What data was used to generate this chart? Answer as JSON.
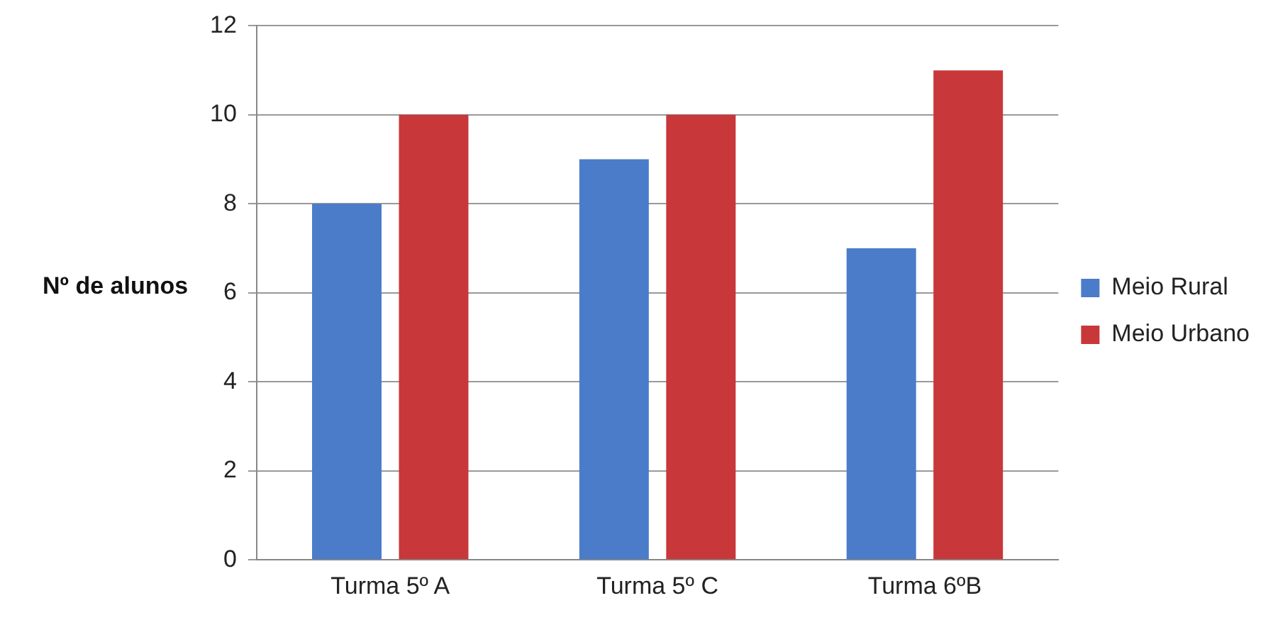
{
  "chart_data": {
    "type": "bar",
    "ylabel": "Nº de alunos",
    "categories": [
      "Turma 5º A",
      "Turma 5º C",
      "Turma 6ºB"
    ],
    "series": [
      {
        "name": "Meio Rural",
        "color": "#4a7cc9",
        "values": [
          8,
          9,
          7
        ]
      },
      {
        "name": "Meio Urbano",
        "color": "#c8383a",
        "values": [
          10,
          10,
          11
        ]
      }
    ],
    "ylim": [
      0,
      12
    ],
    "yticks": [
      0,
      2,
      4,
      6,
      8,
      10,
      12
    ],
    "grid": "y",
    "legend": "right"
  }
}
